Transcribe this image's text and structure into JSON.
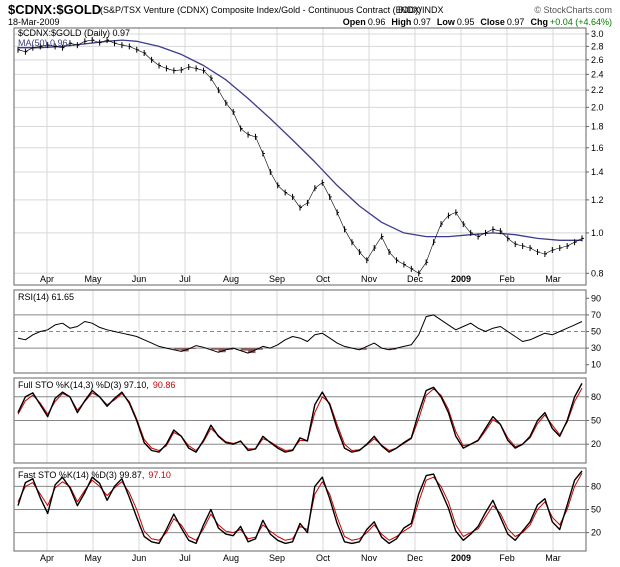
{
  "header": {
    "symbol": "$CDNX:$GOLD",
    "description": "(S&P/TSX Venture (CDNX) Composite Index/Gold - Continuous Contract (EOD))",
    "exchange": "INDX/INDX",
    "watermark": "© StockCharts.com",
    "date": "18-Mar-2009",
    "ohlc": [
      {
        "label": "Open",
        "value": "0.96"
      },
      {
        "label": "High",
        "value": "0.97"
      },
      {
        "label": "Low",
        "value": "0.95"
      },
      {
        "label": "Close",
        "value": "0.97"
      },
      {
        "label": "Chg",
        "value": "+0.04 (+4.64%)",
        "color": "#008000"
      }
    ]
  },
  "colors": {
    "price": "#000000",
    "ma": "#3c3c8c",
    "rsi": "#000000",
    "rsi_fill": "#8b5a5a",
    "k_line": "#000000",
    "d_line": "#cc0000",
    "frame": "#666666",
    "grid": "#d8d8d8",
    "ref": "#888888"
  },
  "chart_data": [
    {
      "type": "line",
      "panel": "price",
      "legend": [
        {
          "text": "$CDNX:$GOLD (Daily) 0.97",
          "color": "#000000"
        },
        {
          "text": "MA(50) 0.96",
          "color": "#3c3c8c"
        }
      ],
      "y_scale": "log",
      "ylim": [
        0.75,
        3.1
      ],
      "y_ticks": [
        3.0,
        2.8,
        2.6,
        2.4,
        2.2,
        2.0,
        1.8,
        1.6,
        1.4,
        1.2,
        1.0,
        0.8
      ],
      "y_tick_labels": [
        "3.0",
        "2.8",
        "2.6",
        "2.4",
        "2.2",
        "2.0",
        "1.8",
        "1.6",
        "1.4",
        "1.2",
        "1.0",
        "0.8"
      ],
      "x_labels": [
        "Apr",
        "May",
        "Jun",
        "Jul",
        "Aug",
        "Sep",
        "Oct",
        "Nov",
        "Dec",
        "2009",
        "Feb",
        "Mar"
      ],
      "price_points": [
        [
          0,
          2.75
        ],
        [
          1,
          2.72
        ],
        [
          2,
          2.78
        ],
        [
          3,
          2.8
        ],
        [
          4,
          2.82
        ],
        [
          5,
          2.8
        ],
        [
          6,
          2.78
        ],
        [
          7,
          2.85
        ],
        [
          8,
          2.82
        ],
        [
          9,
          2.88
        ],
        [
          10,
          2.9
        ],
        [
          11,
          2.86
        ],
        [
          12,
          2.9
        ],
        [
          13,
          2.85
        ],
        [
          14,
          2.82
        ],
        [
          15,
          2.8
        ],
        [
          16,
          2.75
        ],
        [
          17,
          2.7
        ],
        [
          18,
          2.6
        ],
        [
          19,
          2.52
        ],
        [
          20,
          2.48
        ],
        [
          21,
          2.45
        ],
        [
          22,
          2.46
        ],
        [
          23,
          2.5
        ],
        [
          24,
          2.48
        ],
        [
          25,
          2.45
        ],
        [
          26,
          2.35
        ],
        [
          27,
          2.2
        ],
        [
          28,
          2.05
        ],
        [
          29,
          1.95
        ],
        [
          30,
          1.78
        ],
        [
          31,
          1.72
        ],
        [
          32,
          1.7
        ],
        [
          33,
          1.55
        ],
        [
          34,
          1.4
        ],
        [
          35,
          1.3
        ],
        [
          36,
          1.25
        ],
        [
          37,
          1.22
        ],
        [
          38,
          1.15
        ],
        [
          39,
          1.18
        ],
        [
          40,
          1.28
        ],
        [
          41,
          1.32
        ],
        [
          42,
          1.22
        ],
        [
          43,
          1.12
        ],
        [
          44,
          1.02
        ],
        [
          45,
          0.95
        ],
        [
          46,
          0.9
        ],
        [
          47,
          0.86
        ],
        [
          48,
          0.92
        ],
        [
          49,
          0.98
        ],
        [
          50,
          0.9
        ],
        [
          51,
          0.86
        ],
        [
          52,
          0.84
        ],
        [
          53,
          0.82
        ],
        [
          54,
          0.8
        ],
        [
          55,
          0.85
        ],
        [
          56,
          0.95
        ],
        [
          57,
          1.05
        ],
        [
          58,
          1.1
        ],
        [
          59,
          1.12
        ],
        [
          60,
          1.05
        ],
        [
          61,
          1.0
        ],
        [
          62,
          0.98
        ],
        [
          63,
          1.0
        ],
        [
          64,
          1.02
        ],
        [
          65,
          1.01
        ],
        [
          66,
          0.97
        ],
        [
          67,
          0.94
        ],
        [
          68,
          0.93
        ],
        [
          69,
          0.92
        ],
        [
          70,
          0.9
        ],
        [
          71,
          0.89
        ],
        [
          72,
          0.91
        ],
        [
          73,
          0.92
        ],
        [
          74,
          0.93
        ],
        [
          75,
          0.95
        ],
        [
          76,
          0.97
        ]
      ],
      "ma_points": [
        [
          0,
          2.78
        ],
        [
          3,
          2.78
        ],
        [
          6,
          2.8
        ],
        [
          9,
          2.84
        ],
        [
          12,
          2.88
        ],
        [
          14,
          2.9
        ],
        [
          16,
          2.88
        ],
        [
          19,
          2.8
        ],
        [
          22,
          2.68
        ],
        [
          25,
          2.52
        ],
        [
          28,
          2.33
        ],
        [
          31,
          2.1
        ],
        [
          34,
          1.88
        ],
        [
          37,
          1.67
        ],
        [
          40,
          1.48
        ],
        [
          43,
          1.3
        ],
        [
          46,
          1.16
        ],
        [
          49,
          1.06
        ],
        [
          52,
          1.0
        ],
        [
          55,
          0.98
        ],
        [
          58,
          0.98
        ],
        [
          61,
          0.99
        ],
        [
          64,
          1.0
        ],
        [
          67,
          0.99
        ],
        [
          70,
          0.97
        ],
        [
          73,
          0.96
        ],
        [
          76,
          0.96
        ]
      ]
    },
    {
      "type": "line",
      "panel": "rsi",
      "legend": [
        {
          "text": "RSI(14) 61.65",
          "color": "#000000"
        }
      ],
      "ylim": [
        0,
        100
      ],
      "y_ticks": [
        90,
        70,
        50,
        30,
        10
      ],
      "y_tick_labels": [
        "90",
        "70",
        "50",
        "30",
        "10"
      ],
      "ref_lines": [
        70,
        50,
        30
      ],
      "values": [
        42,
        40,
        46,
        50,
        52,
        58,
        60,
        54,
        56,
        62,
        60,
        55,
        52,
        50,
        48,
        46,
        44,
        40,
        36,
        32,
        30,
        28,
        26,
        29,
        33,
        31,
        28,
        25,
        28,
        30,
        27,
        24,
        28,
        32,
        30,
        34,
        40,
        44,
        42,
        38,
        46,
        48,
        42,
        36,
        32,
        30,
        28,
        32,
        36,
        30,
        28,
        30,
        32,
        34,
        46,
        68,
        70,
        64,
        58,
        52,
        56,
        60,
        54,
        50,
        54,
        56,
        50,
        44,
        38,
        40,
        44,
        48,
        46,
        50,
        54,
        58,
        62
      ]
    },
    {
      "type": "line",
      "panel": "full-sto",
      "legend": [
        {
          "text": "Full STO %K(14,3) %D(3) 97.10,",
          "color": "#000000"
        },
        {
          "text": "90.86",
          "color": "#cc0000"
        }
      ],
      "ylim": [
        0,
        100
      ],
      "y_ticks": [
        80,
        50,
        20
      ],
      "y_tick_labels": [
        "80",
        "50",
        "20"
      ],
      "ref_lines": [
        80,
        50,
        20
      ],
      "k": [
        60,
        80,
        85,
        70,
        55,
        78,
        86,
        80,
        60,
        75,
        88,
        80,
        68,
        78,
        86,
        72,
        50,
        22,
        12,
        10,
        20,
        38,
        30,
        15,
        10,
        25,
        44,
        30,
        22,
        20,
        24,
        12,
        14,
        30,
        22,
        15,
        10,
        12,
        28,
        24,
        70,
        86,
        70,
        40,
        15,
        10,
        12,
        20,
        30,
        18,
        10,
        15,
        22,
        28,
        60,
        88,
        92,
        80,
        60,
        30,
        15,
        20,
        25,
        40,
        55,
        45,
        25,
        15,
        20,
        30,
        50,
        60,
        40,
        30,
        50,
        80,
        97
      ],
      "d": [
        58,
        75,
        82,
        72,
        58,
        74,
        84,
        80,
        63,
        74,
        85,
        80,
        70,
        76,
        84,
        74,
        52,
        26,
        15,
        12,
        18,
        35,
        30,
        18,
        12,
        23,
        40,
        31,
        23,
        21,
        23,
        14,
        14,
        27,
        23,
        17,
        12,
        13,
        25,
        24,
        60,
        80,
        72,
        45,
        20,
        12,
        13,
        19,
        27,
        19,
        12,
        15,
        21,
        27,
        52,
        82,
        90,
        82,
        64,
        36,
        18,
        20,
        24,
        37,
        51,
        45,
        28,
        17,
        20,
        28,
        46,
        57,
        44,
        32,
        48,
        74,
        91
      ]
    },
    {
      "type": "line",
      "panel": "fast-sto",
      "legend": [
        {
          "text": "Fast STO %K(14) %D(3) 99.87,",
          "color": "#000000"
        },
        {
          "text": "97.10",
          "color": "#cc0000"
        }
      ],
      "ylim": [
        0,
        100
      ],
      "y_ticks": [
        80,
        50,
        20
      ],
      "y_tick_labels": [
        "80",
        "50",
        "20"
      ],
      "ref_lines": [
        80,
        50,
        20
      ],
      "k": [
        55,
        85,
        90,
        65,
        45,
        82,
        92,
        78,
        55,
        72,
        92,
        84,
        62,
        80,
        90,
        66,
        40,
        15,
        8,
        6,
        24,
        44,
        26,
        10,
        6,
        30,
        50,
        26,
        18,
        16,
        28,
        8,
        12,
        36,
        18,
        10,
        6,
        8,
        32,
        20,
        80,
        92,
        64,
        32,
        8,
        6,
        8,
        24,
        34,
        14,
        6,
        12,
        26,
        32,
        70,
        94,
        96,
        74,
        52,
        22,
        10,
        18,
        28,
        46,
        62,
        40,
        18,
        10,
        22,
        34,
        56,
        64,
        34,
        24,
        56,
        88,
        100
      ],
      "d": [
        60,
        80,
        85,
        70,
        55,
        78,
        86,
        80,
        60,
        75,
        88,
        80,
        68,
        78,
        86,
        72,
        50,
        22,
        12,
        10,
        20,
        38,
        30,
        15,
        10,
        25,
        44,
        30,
        22,
        20,
        24,
        12,
        14,
        30,
        22,
        15,
        10,
        12,
        28,
        24,
        70,
        86,
        70,
        40,
        15,
        10,
        12,
        20,
        30,
        18,
        10,
        15,
        22,
        28,
        60,
        88,
        92,
        80,
        60,
        30,
        15,
        20,
        25,
        40,
        55,
        45,
        25,
        15,
        20,
        30,
        50,
        60,
        40,
        30,
        50,
        80,
        97
      ]
    }
  ]
}
